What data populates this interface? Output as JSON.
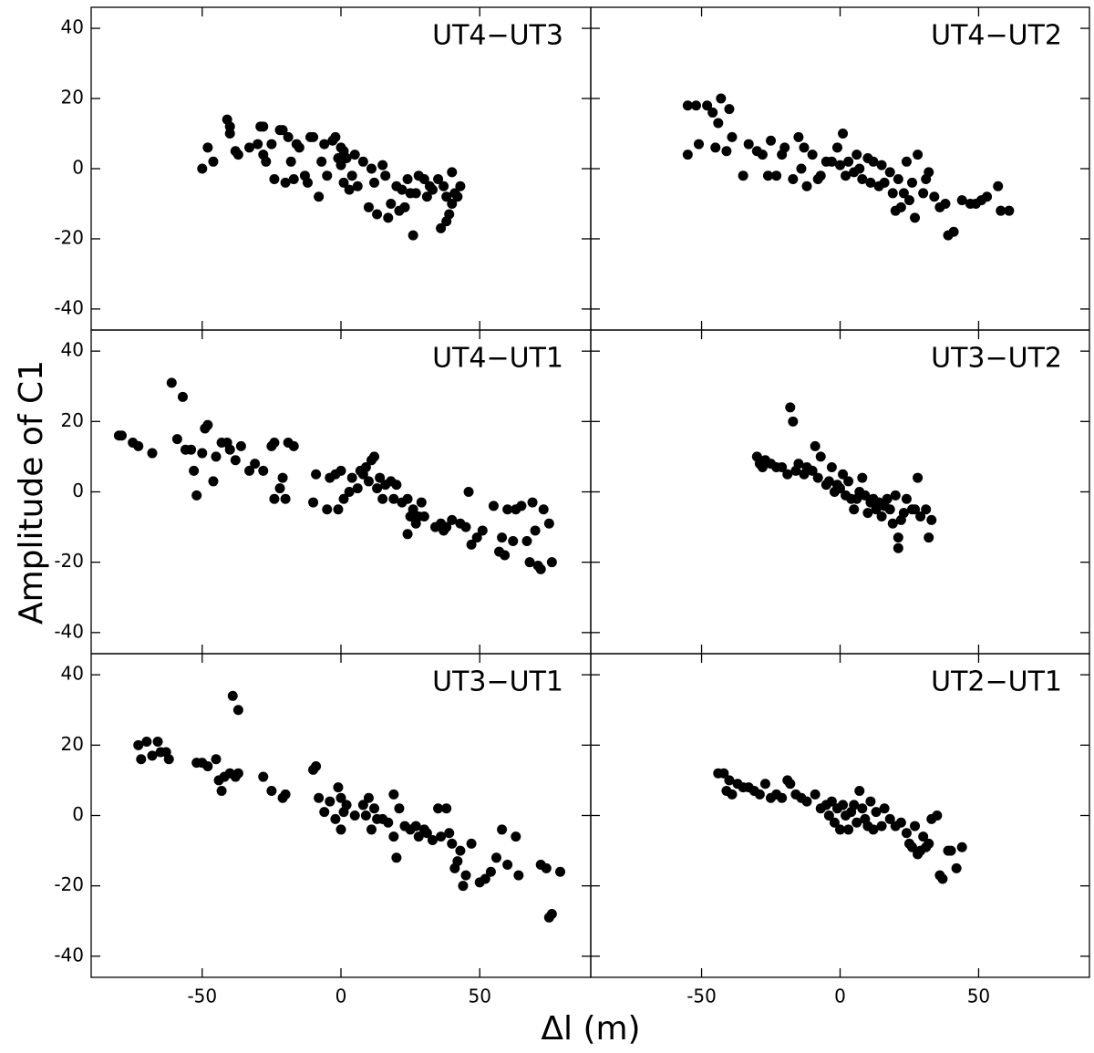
{
  "chart_data": {
    "type": "scatter",
    "xlabel": "Δl (m)",
    "ylabel": "Amplitude of C1",
    "xlim": [
      -90,
      90
    ],
    "ylim": [
      -46,
      46
    ],
    "xticks": [
      -50,
      0,
      50
    ],
    "yticks": [
      -40,
      -20,
      0,
      20,
      40
    ],
    "color": "#000000",
    "panels": [
      {
        "title": "UT4−UT3",
        "x": [
          -50,
          -48,
          -46,
          -41,
          -40,
          -40,
          -38,
          -37,
          -33,
          -30,
          -29,
          -28,
          -28,
          -27,
          -25,
          -24,
          -22,
          -21,
          -20,
          -19,
          -18,
          -17,
          -16,
          -15,
          -13,
          -12,
          -11,
          -10,
          -8,
          -7,
          -6,
          -5,
          -3,
          -2,
          -1,
          0,
          0,
          1,
          1,
          2,
          3,
          4,
          5,
          6,
          8,
          10,
          11,
          12,
          13,
          15,
          16,
          17,
          18,
          20,
          21,
          22,
          23,
          24,
          25,
          26,
          27,
          28,
          30,
          31,
          32,
          33,
          35,
          36,
          37,
          38,
          38,
          39,
          40,
          40,
          41,
          42,
          43
        ],
        "y": [
          0,
          6,
          2,
          14,
          12,
          10,
          5,
          4,
          6,
          7,
          12,
          12,
          4,
          2,
          7,
          -3,
          11,
          11,
          -4,
          9,
          2,
          -3,
          7,
          6,
          -2,
          -4,
          9,
          9,
          -8,
          2,
          7,
          -2,
          8,
          9,
          3,
          6,
          1,
          -4,
          5,
          3,
          -6,
          -2,
          4,
          -5,
          2,
          -11,
          0,
          -4,
          -13,
          1,
          -2,
          -14,
          -10,
          -5,
          -12,
          -6,
          -11,
          -3,
          -7,
          -19,
          -7,
          -2,
          -3,
          -8,
          -5,
          -6,
          -3,
          -17,
          -5,
          -15,
          -8,
          -13,
          -1,
          -10,
          -7,
          -8,
          -5
        ]
      },
      {
        "title": "UT4−UT2",
        "x": [
          -55,
          -55,
          -52,
          -51,
          -48,
          -46,
          -45,
          -44,
          -43,
          -41,
          -40,
          -39,
          -35,
          -33,
          -30,
          -28,
          -26,
          -25,
          -23,
          -21,
          -20,
          -17,
          -15,
          -14,
          -13,
          -12,
          -10,
          -8,
          -7,
          -5,
          -3,
          -1,
          0,
          1,
          2,
          3,
          5,
          6,
          7,
          8,
          10,
          11,
          12,
          14,
          15,
          16,
          18,
          19,
          20,
          21,
          22,
          23,
          24,
          25,
          26,
          27,
          28,
          30,
          31,
          32,
          34,
          36,
          38,
          39,
          41,
          44,
          47,
          49,
          51,
          53,
          57,
          58,
          61
        ],
        "y": [
          18,
          4,
          18,
          7,
          18,
          16,
          6,
          13,
          20,
          5,
          17,
          9,
          -2,
          7,
          5,
          4,
          -2,
          8,
          -2,
          4,
          6,
          -3,
          9,
          0,
          6,
          -5,
          4,
          -3,
          -2,
          2,
          2,
          6,
          1,
          10,
          -2,
          2,
          -1,
          4,
          0,
          -3,
          3,
          -4,
          2,
          -5,
          1,
          -4,
          -1,
          -7,
          -12,
          -3,
          -11,
          -7,
          2,
          -9,
          -4,
          -14,
          4,
          -7,
          -3,
          -1,
          -8,
          -11,
          -10,
          -19,
          -18,
          -9,
          -10,
          -10,
          -9,
          -8,
          -5,
          -12,
          -12
        ]
      },
      {
        "title": "UT4−UT1",
        "x": [
          -80,
          -79,
          -75,
          -73,
          -68,
          -61,
          -59,
          -57,
          -56,
          -54,
          -53,
          -52,
          -50,
          -49,
          -48,
          -46,
          -45,
          -43,
          -41,
          -40,
          -38,
          -36,
          -33,
          -31,
          -28,
          -25,
          -24,
          -24,
          -22,
          -21,
          -20,
          -19,
          -17,
          -10,
          -9,
          -5,
          -4,
          -2,
          -1,
          0,
          1,
          3,
          4,
          6,
          7,
          8,
          9,
          10,
          11,
          12,
          13,
          14,
          15,
          16,
          18,
          19,
          20,
          22,
          24,
          24,
          25,
          26,
          27,
          28,
          29,
          30,
          34,
          36,
          37,
          38,
          40,
          43,
          45,
          46,
          47,
          49,
          51,
          55,
          57,
          58,
          59,
          60,
          62,
          63,
          65,
          67,
          68,
          69,
          70,
          71,
          72,
          73,
          75,
          76
        ],
        "y": [
          16,
          16,
          14,
          13,
          11,
          31,
          15,
          27,
          12,
          12,
          6,
          -1,
          11,
          18,
          19,
          3,
          10,
          14,
          14,
          12,
          9,
          13,
          6,
          8,
          6,
          13,
          14,
          -2,
          1,
          4,
          -2,
          14,
          13,
          -3,
          5,
          -5,
          4,
          5,
          -5,
          6,
          -2,
          0,
          4,
          1,
          6,
          5,
          7,
          3,
          9,
          10,
          1,
          4,
          -2,
          2,
          3,
          -2,
          2,
          -3,
          -2,
          -12,
          -7,
          -5,
          -9,
          -7,
          -3,
          -7,
          -10,
          -9,
          -11,
          -10,
          -8,
          -9,
          -10,
          0,
          -15,
          -13,
          -11,
          -4,
          -17,
          -13,
          -18,
          -5,
          -14,
          -5,
          -4,
          -14,
          -20,
          -3,
          -11,
          -21,
          -22,
          -5,
          -9,
          -20
        ]
      },
      {
        "title": "UT3−UT2",
        "x": [
          -30,
          -29,
          -28,
          -27,
          -25,
          -23,
          -21,
          -19,
          -18,
          -17,
          -16,
          -15,
          -13,
          -12,
          -10,
          -9,
          -8,
          -7,
          -5,
          -4,
          -3,
          -2,
          -1,
          0,
          1,
          2,
          3,
          4,
          5,
          6,
          7,
          8,
          9,
          10,
          11,
          12,
          13,
          14,
          15,
          16,
          17,
          18,
          19,
          20,
          21,
          21,
          22,
          23,
          24,
          26,
          27,
          28,
          29,
          31,
          32,
          33
        ],
        "y": [
          10,
          8,
          7,
          9,
          8,
          7,
          7,
          5,
          24,
          20,
          6,
          8,
          5,
          7,
          6,
          13,
          4,
          10,
          2,
          3,
          7,
          0,
          2,
          1,
          5,
          -1,
          3,
          -2,
          -5,
          -2,
          0,
          4,
          -1,
          -6,
          -3,
          -2,
          -5,
          -3,
          -7,
          -4,
          -2,
          -5,
          -9,
          -1,
          -16,
          -13,
          -8,
          -6,
          -2,
          -5,
          -5,
          4,
          -7,
          -5,
          -13,
          -8
        ]
      },
      {
        "title": "UT3−UT1",
        "x": [
          -73,
          -72,
          -70,
          -68,
          -66,
          -65,
          -63,
          -62,
          -52,
          -50,
          -48,
          -45,
          -44,
          -43,
          -42,
          -40,
          -39,
          -38,
          -37,
          -37,
          -28,
          -25,
          -21,
          -20,
          -10,
          -9,
          -8,
          -6,
          -4,
          -2,
          -1,
          0,
          0,
          1,
          2,
          5,
          8,
          9,
          10,
          11,
          12,
          13,
          15,
          17,
          19,
          19,
          20,
          21,
          23,
          25,
          27,
          28,
          30,
          31,
          33,
          35,
          36,
          38,
          39,
          40,
          41,
          42,
          43,
          44,
          45,
          47,
          50,
          52,
          54,
          56,
          58,
          60,
          63,
          64,
          72,
          74,
          75,
          76,
          79
        ],
        "y": [
          20,
          16,
          21,
          17,
          21,
          18,
          18,
          16,
          15,
          15,
          14,
          16,
          10,
          7,
          11,
          12,
          34,
          11,
          30,
          12,
          11,
          7,
          5,
          6,
          13,
          14,
          5,
          1,
          4,
          -1,
          8,
          -4,
          5,
          1,
          3,
          0,
          3,
          0,
          5,
          -4,
          2,
          -1,
          -1,
          -2,
          -6,
          6,
          -12,
          2,
          -3,
          -4,
          -3,
          -6,
          -4,
          -5,
          -7,
          2,
          -6,
          2,
          -5,
          -8,
          -15,
          -13,
          -10,
          -20,
          -17,
          -8,
          -19,
          -18,
          -16,
          -12,
          -4,
          -14,
          -6,
          -17,
          -14,
          -15,
          -29,
          -28,
          -16
        ]
      },
      {
        "title": "UT2−UT1",
        "x": [
          -44,
          -42,
          -41,
          -40,
          -39,
          -37,
          -35,
          -33,
          -31,
          -29,
          -27,
          -25,
          -23,
          -21,
          -19,
          -18,
          -16,
          -14,
          -12,
          -9,
          -7,
          -5,
          -4,
          -3,
          -2,
          -1,
          0,
          1,
          2,
          3,
          4,
          5,
          6,
          7,
          8,
          9,
          10,
          11,
          12,
          13,
          15,
          16,
          18,
          20,
          22,
          24,
          25,
          26,
          27,
          28,
          29,
          30,
          31,
          32,
          33,
          35,
          36,
          37,
          39,
          40,
          42,
          44
        ],
        "y": [
          12,
          12,
          7,
          10,
          6,
          9,
          8,
          8,
          7,
          6,
          9,
          5,
          6,
          5,
          10,
          9,
          6,
          5,
          4,
          6,
          2,
          3,
          0,
          4,
          -2,
          2,
          -4,
          3,
          0,
          -4,
          1,
          3,
          -2,
          7,
          2,
          -1,
          -3,
          4,
          -4,
          1,
          -3,
          2,
          -1,
          -3,
          -2,
          -5,
          -8,
          -9,
          -3,
          -11,
          -10,
          -6,
          -9,
          -8,
          -1,
          0,
          -17,
          -18,
          -10,
          -10,
          -15,
          -9
        ]
      }
    ]
  }
}
